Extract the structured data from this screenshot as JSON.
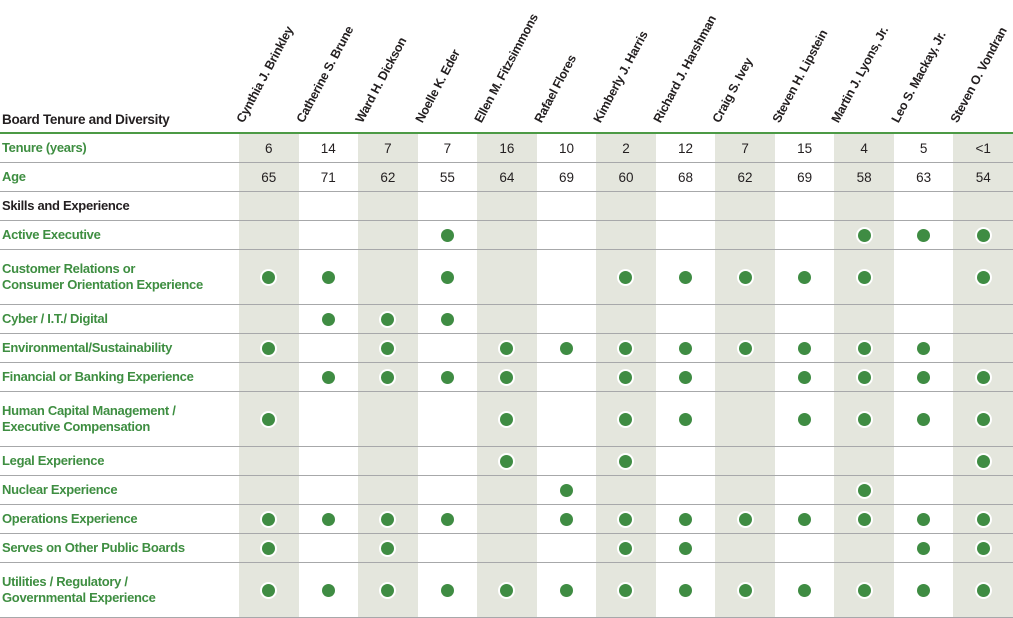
{
  "table": {
    "corner_label": "Board Tenure and Diversity",
    "columns": [
      "Cynthia J. Brinkley",
      "Catherine S. Brune",
      "Ward H. Dickson",
      "Noelle K. Eder",
      "Ellen M. Fitzsimmons",
      "Rafael Flores",
      "Kimberly J. Harris",
      "Richard J. Harshman",
      "Craig S. Ivey",
      "Steven H. Lipstein",
      "Martin J. Lyons, Jr.",
      "Leo S. Mackay, Jr.",
      "Steven O. Vondran"
    ],
    "rows": [
      {
        "label": "Tenure (years)",
        "type": "values",
        "values": [
          "6",
          "14",
          "7",
          "7",
          "16",
          "10",
          "2",
          "12",
          "7",
          "15",
          "4",
          "5",
          "<1"
        ]
      },
      {
        "label": "Age",
        "type": "values",
        "values": [
          "65",
          "71",
          "62",
          "55",
          "64",
          "69",
          "60",
          "68",
          "62",
          "69",
          "58",
          "63",
          "54"
        ]
      },
      {
        "label": "Skills and Experience",
        "type": "section"
      },
      {
        "label": "Active Executive",
        "type": "dots",
        "dots": [
          0,
          0,
          0,
          1,
          0,
          0,
          0,
          0,
          0,
          0,
          1,
          1,
          1
        ]
      },
      {
        "label": "Customer Relations or\nConsumer Orientation Experience",
        "type": "dots",
        "dots": [
          1,
          1,
          0,
          1,
          0,
          0,
          1,
          1,
          1,
          1,
          1,
          0,
          1
        ]
      },
      {
        "label": "Cyber / I.T./ Digital",
        "type": "dots",
        "dots": [
          0,
          1,
          1,
          1,
          0,
          0,
          0,
          0,
          0,
          0,
          0,
          0,
          0
        ]
      },
      {
        "label": "Environmental/Sustainability",
        "type": "dots",
        "dots": [
          1,
          0,
          1,
          0,
          1,
          1,
          1,
          1,
          1,
          1,
          1,
          1,
          0
        ]
      },
      {
        "label": "Financial or Banking Experience",
        "type": "dots",
        "dots": [
          0,
          1,
          1,
          1,
          1,
          0,
          1,
          1,
          0,
          1,
          1,
          1,
          1
        ]
      },
      {
        "label": "Human Capital Management /\nExecutive Compensation",
        "type": "dots",
        "dots": [
          1,
          0,
          0,
          0,
          1,
          0,
          1,
          1,
          0,
          1,
          1,
          1,
          1
        ]
      },
      {
        "label": "Legal Experience",
        "type": "dots",
        "dots": [
          0,
          0,
          0,
          0,
          1,
          0,
          1,
          0,
          0,
          0,
          0,
          0,
          1
        ]
      },
      {
        "label": "Nuclear Experience",
        "type": "dots",
        "dots": [
          0,
          0,
          0,
          0,
          0,
          1,
          0,
          0,
          0,
          0,
          1,
          0,
          0
        ]
      },
      {
        "label": "Operations Experience",
        "type": "dots",
        "dots": [
          1,
          1,
          1,
          1,
          0,
          1,
          1,
          1,
          1,
          1,
          1,
          1,
          1
        ]
      },
      {
        "label": "Serves on Other Public Boards",
        "type": "dots",
        "dots": [
          1,
          0,
          1,
          0,
          0,
          0,
          1,
          1,
          0,
          0,
          0,
          1,
          1
        ]
      },
      {
        "label": "Utilities / Regulatory /\nGovernmental Experience",
        "type": "dots",
        "dots": [
          1,
          1,
          1,
          1,
          1,
          1,
          1,
          1,
          1,
          1,
          1,
          1,
          1
        ]
      }
    ]
  },
  "colors": {
    "label_green": "#3e8e41",
    "dot_green": "#3f8c43",
    "header_rule_green": "#4c9a45",
    "row_rule_gray": "#a7a8aa",
    "shaded_column": "#e4e6dd",
    "text_black": "#231f20",
    "background": "#ffffff"
  }
}
